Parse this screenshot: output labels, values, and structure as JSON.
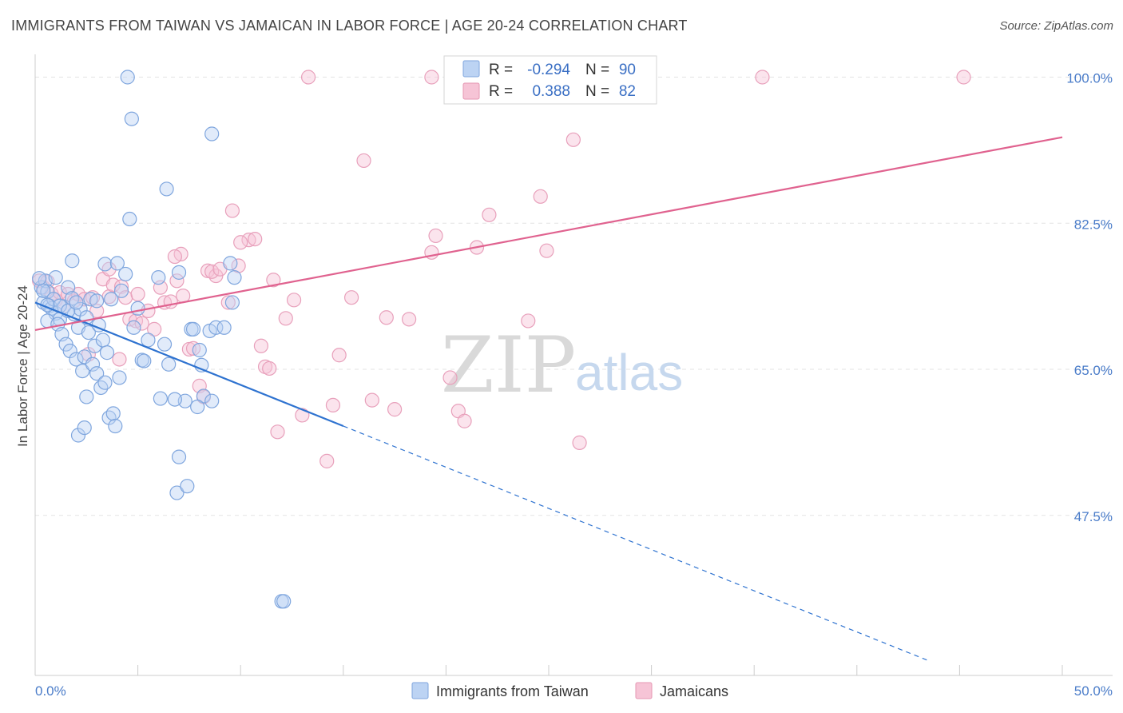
{
  "title": "IMMIGRANTS FROM TAIWAN VS JAMAICAN IN LABOR FORCE | AGE 20-24 CORRELATION CHART",
  "source": "Source: ZipAtlas.com",
  "watermark": {
    "zip": "ZIP",
    "atlas": "atlas"
  },
  "legend": {
    "r_label": "R =",
    "n_label": "N =",
    "series1": {
      "r": "-0.294",
      "n": "90"
    },
    "series2": {
      "r": "0.388",
      "n": "82"
    }
  },
  "bottom_legend": [
    "Immigrants from Taiwan",
    "Jamaicans"
  ],
  "colors": {
    "blue": "#5b8fd6",
    "blue_fill": "#bcd3f3",
    "pink": "#e07aa0",
    "pink_fill": "#f6c4d6",
    "blue_line": "#2f73d0",
    "pink_line": "#e0628f"
  },
  "chart_data": {
    "type": "scatter",
    "title": "IMMIGRANTS FROM TAIWAN VS JAMAICAN IN LABOR FORCE | AGE 20-24 CORRELATION CHART",
    "xlabel": "",
    "ylabel": "In Labor Force | Age 20-24",
    "xlim": [
      0,
      50
    ],
    "ylim": [
      30,
      102
    ],
    "x_ticks": [
      "0.0%",
      "50.0%"
    ],
    "y_ticks": [
      {
        "value": 100,
        "label": "100.0%"
      },
      {
        "value": 82.5,
        "label": "82.5%"
      },
      {
        "value": 65,
        "label": "65.0%"
      },
      {
        "value": 47.5,
        "label": "47.5%"
      }
    ],
    "series": [
      {
        "name": "Immigrants from Taiwan",
        "r": -0.294,
        "n": 90,
        "trend": {
          "x0": 0,
          "y0": 73.0,
          "x1": 15,
          "y1": 58.2,
          "dash_to_x": 43.5
        },
        "points": [
          [
            0.3,
            74.8
          ],
          [
            0.5,
            75.6
          ],
          [
            0.6,
            74.3
          ],
          [
            0.4,
            73.0
          ],
          [
            0.7,
            72.6
          ],
          [
            0.8,
            72.3
          ],
          [
            1.0,
            71.7
          ],
          [
            0.6,
            70.8
          ],
          [
            1.2,
            71.0
          ],
          [
            1.4,
            72.5
          ],
          [
            1.6,
            74.8
          ],
          [
            1.8,
            73.5
          ],
          [
            1.1,
            70.4
          ],
          [
            1.3,
            69.2
          ],
          [
            1.9,
            71.6
          ],
          [
            2.2,
            72.2
          ],
          [
            2.5,
            71.2
          ],
          [
            2.7,
            73.4
          ],
          [
            2.1,
            70.0
          ],
          [
            1.5,
            68.0
          ],
          [
            1.7,
            67.2
          ],
          [
            2.0,
            66.2
          ],
          [
            2.3,
            64.8
          ],
          [
            2.6,
            69.4
          ],
          [
            2.9,
            67.8
          ],
          [
            3.1,
            70.3
          ],
          [
            3.3,
            68.5
          ],
          [
            3.5,
            67.0
          ],
          [
            2.4,
            66.5
          ],
          [
            2.8,
            65.6
          ],
          [
            3.0,
            64.5
          ],
          [
            3.2,
            62.8
          ],
          [
            3.4,
            63.4
          ],
          [
            3.6,
            59.2
          ],
          [
            3.8,
            59.7
          ],
          [
            3.9,
            58.2
          ],
          [
            2.5,
            61.7
          ],
          [
            2.1,
            57.1
          ],
          [
            2.4,
            58.0
          ],
          [
            1.8,
            78.0
          ],
          [
            3.4,
            77.6
          ],
          [
            4.0,
            77.7
          ],
          [
            4.4,
            76.4
          ],
          [
            4.2,
            74.4
          ],
          [
            3.7,
            73.4
          ],
          [
            4.6,
            83.0
          ],
          [
            5.0,
            72.3
          ],
          [
            5.2,
            66.1
          ],
          [
            4.8,
            70.0
          ],
          [
            5.5,
            68.5
          ],
          [
            6.0,
            76.0
          ],
          [
            6.3,
            68.0
          ],
          [
            6.5,
            65.6
          ],
          [
            6.1,
            61.5
          ],
          [
            7.0,
            76.6
          ],
          [
            7.3,
            61.2
          ],
          [
            7.6,
            69.8
          ],
          [
            7.7,
            69.8
          ],
          [
            8.0,
            67.3
          ],
          [
            8.1,
            65.5
          ],
          [
            8.2,
            61.8
          ],
          [
            8.5,
            69.6
          ],
          [
            8.6,
            61.2
          ],
          [
            8.8,
            70.0
          ],
          [
            9.2,
            70.0
          ],
          [
            9.6,
            73.0
          ],
          [
            7.9,
            60.5
          ],
          [
            6.8,
            61.4
          ],
          [
            6.9,
            50.2
          ],
          [
            7.4,
            51.0
          ],
          [
            7.0,
            54.5
          ],
          [
            4.5,
            100.0
          ],
          [
            4.7,
            95.0
          ],
          [
            8.6,
            93.2
          ],
          [
            6.4,
            86.6
          ],
          [
            9.5,
            77.7
          ],
          [
            9.7,
            76.0
          ],
          [
            5.3,
            66.0
          ],
          [
            4.1,
            64.0
          ],
          [
            1.0,
            76.0
          ],
          [
            0.2,
            75.9
          ],
          [
            0.4,
            74.4
          ],
          [
            0.9,
            73.4
          ],
          [
            1.2,
            72.6
          ],
          [
            1.6,
            72.0
          ],
          [
            2.0,
            73.0
          ],
          [
            3.0,
            73.2
          ],
          [
            12.0,
            37.2
          ],
          [
            12.1,
            37.2
          ],
          [
            0.6,
            72.7
          ]
        ]
      },
      {
        "name": "Jamaicans",
        "r": 0.388,
        "n": 82,
        "trend": {
          "x0": 0,
          "y0": 69.7,
          "x1": 50,
          "y1": 92.8
        },
        "points": [
          [
            0.2,
            75.6
          ],
          [
            0.4,
            74.8
          ],
          [
            0.6,
            75.5
          ],
          [
            0.8,
            74.0
          ],
          [
            1.0,
            73.3
          ],
          [
            1.2,
            74.2
          ],
          [
            1.4,
            72.5
          ],
          [
            1.6,
            74.0
          ],
          [
            1.9,
            73.2
          ],
          [
            2.1,
            74.0
          ],
          [
            2.4,
            73.4
          ],
          [
            2.8,
            73.6
          ],
          [
            3.0,
            72.0
          ],
          [
            3.3,
            75.8
          ],
          [
            3.6,
            73.7
          ],
          [
            3.8,
            75.1
          ],
          [
            4.2,
            74.9
          ],
          [
            4.4,
            73.6
          ],
          [
            4.6,
            71.0
          ],
          [
            4.9,
            70.8
          ],
          [
            5.2,
            70.5
          ],
          [
            5.5,
            72.0
          ],
          [
            5.8,
            69.8
          ],
          [
            6.1,
            74.8
          ],
          [
            6.3,
            73.0
          ],
          [
            6.6,
            73.1
          ],
          [
            6.9,
            75.6
          ],
          [
            7.2,
            73.8
          ],
          [
            7.5,
            67.4
          ],
          [
            7.7,
            67.5
          ],
          [
            8.0,
            63.0
          ],
          [
            8.2,
            61.7
          ],
          [
            8.4,
            76.8
          ],
          [
            8.8,
            76.2
          ],
          [
            9.4,
            73.0
          ],
          [
            9.9,
            77.4
          ],
          [
            10.4,
            80.5
          ],
          [
            10.7,
            80.6
          ],
          [
            11.0,
            67.8
          ],
          [
            11.2,
            65.3
          ],
          [
            11.4,
            65.1
          ],
          [
            11.6,
            75.7
          ],
          [
            11.8,
            57.5
          ],
          [
            12.2,
            71.1
          ],
          [
            12.6,
            73.3
          ],
          [
            13.0,
            59.5
          ],
          [
            13.3,
            100.0
          ],
          [
            14.2,
            54.0
          ],
          [
            14.5,
            60.7
          ],
          [
            14.8,
            66.7
          ],
          [
            15.4,
            73.6
          ],
          [
            16.0,
            90.0
          ],
          [
            16.4,
            61.3
          ],
          [
            17.1,
            71.2
          ],
          [
            17.5,
            60.2
          ],
          [
            18.2,
            71.0
          ],
          [
            19.3,
            100.0
          ],
          [
            19.3,
            79.0
          ],
          [
            19.5,
            81.0
          ],
          [
            20.2,
            64.0
          ],
          [
            20.6,
            60.0
          ],
          [
            20.9,
            58.8
          ],
          [
            21.5,
            79.6
          ],
          [
            22.1,
            83.5
          ],
          [
            24.0,
            70.8
          ],
          [
            24.6,
            85.7
          ],
          [
            24.9,
            79.2
          ],
          [
            26.5,
            56.2
          ],
          [
            26.2,
            92.5
          ],
          [
            28.0,
            100.0
          ],
          [
            35.4,
            100.0
          ],
          [
            45.2,
            100.0
          ],
          [
            9.6,
            84.0
          ],
          [
            7.1,
            78.8
          ],
          [
            5.0,
            74.0
          ],
          [
            6.8,
            78.5
          ],
          [
            3.6,
            77.0
          ],
          [
            2.6,
            66.8
          ],
          [
            4.1,
            66.2
          ],
          [
            8.6,
            76.7
          ],
          [
            10.0,
            80.2
          ],
          [
            9.0,
            77.0
          ]
        ]
      }
    ]
  }
}
